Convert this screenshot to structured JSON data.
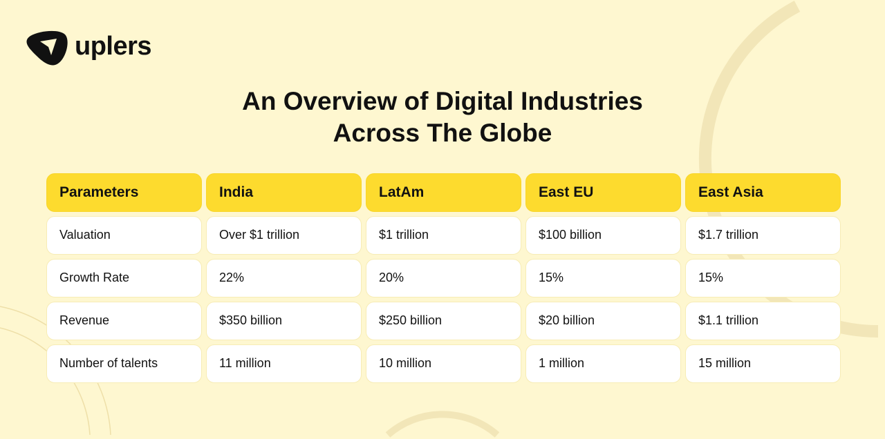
{
  "brand": {
    "name": "uplers"
  },
  "title": {
    "line1": "An Overview of Digital Industries",
    "line2": "Across The Globe"
  },
  "table": {
    "headers": [
      "Parameters",
      "India",
      "LatAm",
      "East EU",
      "East Asia"
    ],
    "rows": [
      [
        "Valuation",
        "Over $1 trillion",
        "$1 trillion",
        "$100 billion",
        "$1.7 trillion"
      ],
      [
        "Growth Rate",
        "22%",
        "20%",
        "15%",
        "15%"
      ],
      [
        "Revenue",
        "$350 billion",
        "$250 billion",
        "$20 billion",
        "$1.1 trillion"
      ],
      [
        "Number of talents",
        "11 million",
        "10 million",
        "1 million",
        "15 million"
      ]
    ]
  },
  "colors": {
    "background": "#fef7d0",
    "header": "#fddb2e",
    "cell": "#ffffff"
  }
}
